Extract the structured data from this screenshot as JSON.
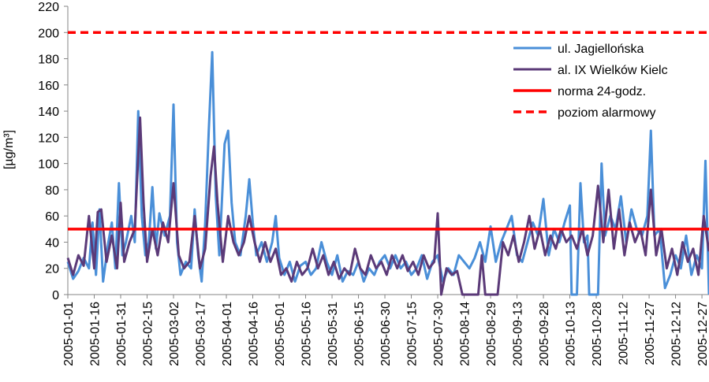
{
  "chart_data": {
    "type": "line",
    "title": "",
    "xlabel": "",
    "ylabel": "[µg/m³]",
    "ylim": [
      0,
      220
    ],
    "yticks": [
      0,
      20,
      40,
      60,
      80,
      100,
      120,
      140,
      160,
      180,
      200,
      220
    ],
    "x_start_date": "2005-01-01",
    "x_end_date": "2005-12-31",
    "xtick_labels": [
      "2005-01-01",
      "2005-01-16",
      "2005-01-31",
      "2005-02-15",
      "2005-03-02",
      "2005-03-17",
      "2005-04-01",
      "2005-04-16",
      "2005-05-01",
      "2005-05-16",
      "2005-05-31",
      "2005-06-15",
      "2005-06-30",
      "2005-07-15",
      "2005-07-30",
      "2005-08-14",
      "2005-08-29",
      "2005-09-13",
      "2005-09-28",
      "2005-10-13",
      "2005-10-28",
      "2005-11-12",
      "2005-11-27",
      "2005-12-12",
      "2005-12-27"
    ],
    "grid": false,
    "legend_position": "top-right",
    "series": [
      {
        "name": "ul. Jagiellońska",
        "color": "#4a8fd8",
        "style": "solid",
        "points": [
          [
            "2005-01-01",
            25
          ],
          [
            "2005-01-04",
            12
          ],
          [
            "2005-01-07",
            18
          ],
          [
            "2005-01-10",
            28
          ],
          [
            "2005-01-13",
            20
          ],
          [
            "2005-01-15",
            55
          ],
          [
            "2005-01-17",
            15
          ],
          [
            "2005-01-19",
            65
          ],
          [
            "2005-01-21",
            10
          ],
          [
            "2005-01-24",
            40
          ],
          [
            "2005-01-26",
            55
          ],
          [
            "2005-01-28",
            20
          ],
          [
            "2005-01-30",
            85
          ],
          [
            "2005-02-01",
            30
          ],
          [
            "2005-02-03",
            40
          ],
          [
            "2005-02-06",
            60
          ],
          [
            "2005-02-08",
            40
          ],
          [
            "2005-02-10",
            140
          ],
          [
            "2005-02-12",
            60
          ],
          [
            "2005-02-14",
            30
          ],
          [
            "2005-02-16",
            40
          ],
          [
            "2005-02-18",
            82
          ],
          [
            "2005-02-20",
            35
          ],
          [
            "2005-02-22",
            62
          ],
          [
            "2005-02-25",
            45
          ],
          [
            "2005-02-28",
            60
          ],
          [
            "2005-03-02",
            145
          ],
          [
            "2005-03-04",
            40
          ],
          [
            "2005-03-06",
            15
          ],
          [
            "2005-03-09",
            25
          ],
          [
            "2005-03-12",
            20
          ],
          [
            "2005-03-14",
            65
          ],
          [
            "2005-03-16",
            30
          ],
          [
            "2005-03-18",
            10
          ],
          [
            "2005-03-20",
            55
          ],
          [
            "2005-03-22",
            125
          ],
          [
            "2005-03-24",
            185
          ],
          [
            "2005-03-26",
            75
          ],
          [
            "2005-03-28",
            30
          ],
          [
            "2005-03-31",
            115
          ],
          [
            "2005-04-02",
            125
          ],
          [
            "2005-04-04",
            70
          ],
          [
            "2005-04-06",
            40
          ],
          [
            "2005-04-09",
            30
          ],
          [
            "2005-04-12",
            60
          ],
          [
            "2005-04-14",
            88
          ],
          [
            "2005-04-16",
            55
          ],
          [
            "2005-04-18",
            30
          ],
          [
            "2005-04-21",
            40
          ],
          [
            "2005-04-24",
            25
          ],
          [
            "2005-04-27",
            40
          ],
          [
            "2005-04-29",
            60
          ],
          [
            "2005-05-01",
            28
          ],
          [
            "2005-05-04",
            15
          ],
          [
            "2005-05-07",
            25
          ],
          [
            "2005-05-10",
            10
          ],
          [
            "2005-05-13",
            22
          ],
          [
            "2005-05-16",
            25
          ],
          [
            "2005-05-19",
            15
          ],
          [
            "2005-05-22",
            20
          ],
          [
            "2005-05-25",
            40
          ],
          [
            "2005-05-28",
            25
          ],
          [
            "2005-05-31",
            15
          ],
          [
            "2005-06-03",
            30
          ],
          [
            "2005-06-06",
            10
          ],
          [
            "2005-06-09",
            18
          ],
          [
            "2005-06-12",
            15
          ],
          [
            "2005-06-15",
            25
          ],
          [
            "2005-06-18",
            10
          ],
          [
            "2005-06-21",
            20
          ],
          [
            "2005-06-24",
            15
          ],
          [
            "2005-06-27",
            25
          ],
          [
            "2005-06-30",
            30
          ],
          [
            "2005-07-03",
            20
          ],
          [
            "2005-07-06",
            30
          ],
          [
            "2005-07-09",
            20
          ],
          [
            "2005-07-12",
            25
          ],
          [
            "2005-07-15",
            15
          ],
          [
            "2005-07-18",
            20
          ],
          [
            "2005-07-21",
            30
          ],
          [
            "2005-07-24",
            12
          ],
          [
            "2005-07-27",
            25
          ],
          [
            "2005-07-30",
            30
          ],
          [
            "2005-08-02",
            10
          ],
          [
            "2005-08-05",
            20
          ],
          [
            "2005-08-08",
            15
          ],
          [
            "2005-08-11",
            30
          ],
          [
            "2005-08-14",
            25
          ],
          [
            "2005-08-17",
            20
          ],
          [
            "2005-08-20",
            28
          ],
          [
            "2005-08-23",
            40
          ],
          [
            "2005-08-26",
            25
          ],
          [
            "2005-08-29",
            52
          ],
          [
            "2005-09-01",
            25
          ],
          [
            "2005-09-04",
            40
          ],
          [
            "2005-09-07",
            50
          ],
          [
            "2005-09-10",
            60
          ],
          [
            "2005-09-13",
            30
          ],
          [
            "2005-09-16",
            25
          ],
          [
            "2005-09-19",
            40
          ],
          [
            "2005-09-22",
            55
          ],
          [
            "2005-09-25",
            45
          ],
          [
            "2005-09-28",
            73
          ],
          [
            "2005-10-01",
            30
          ],
          [
            "2005-10-04",
            50
          ],
          [
            "2005-10-07",
            40
          ],
          [
            "2005-10-10",
            55
          ],
          [
            "2005-10-13",
            68
          ],
          [
            "2005-10-14",
            0
          ],
          [
            "2005-10-17",
            0
          ],
          [
            "2005-10-19",
            85
          ],
          [
            "2005-10-21",
            40
          ],
          [
            "2005-10-23",
            45
          ],
          [
            "2005-10-24",
            0
          ],
          [
            "2005-10-29",
            0
          ],
          [
            "2005-10-31",
            100
          ],
          [
            "2005-11-02",
            45
          ],
          [
            "2005-11-05",
            60
          ],
          [
            "2005-11-08",
            50
          ],
          [
            "2005-11-11",
            75
          ],
          [
            "2005-11-14",
            40
          ],
          [
            "2005-11-17",
            65
          ],
          [
            "2005-11-20",
            50
          ],
          [
            "2005-11-23",
            45
          ],
          [
            "2005-11-26",
            60
          ],
          [
            "2005-11-28",
            125
          ],
          [
            "2005-11-30",
            45
          ],
          [
            "2005-12-03",
            50
          ],
          [
            "2005-12-06",
            5
          ],
          [
            "2005-12-09",
            15
          ],
          [
            "2005-12-12",
            30
          ],
          [
            "2005-12-15",
            20
          ],
          [
            "2005-12-18",
            45
          ],
          [
            "2005-12-21",
            15
          ],
          [
            "2005-12-24",
            30
          ],
          [
            "2005-12-27",
            20
          ],
          [
            "2005-12-29",
            102
          ],
          [
            "2005-12-31",
            0
          ]
        ]
      },
      {
        "name": "al. IX Wielków Kielc",
        "color": "#5b3a78",
        "style": "solid",
        "points": [
          [
            "2005-01-01",
            28
          ],
          [
            "2005-01-04",
            15
          ],
          [
            "2005-01-07",
            30
          ],
          [
            "2005-01-10",
            22
          ],
          [
            "2005-01-13",
            60
          ],
          [
            "2005-01-16",
            20
          ],
          [
            "2005-01-18",
            63
          ],
          [
            "2005-01-20",
            65
          ],
          [
            "2005-01-23",
            25
          ],
          [
            "2005-01-26",
            45
          ],
          [
            "2005-01-29",
            20
          ],
          [
            "2005-01-31",
            70
          ],
          [
            "2005-02-02",
            25
          ],
          [
            "2005-02-05",
            40
          ],
          [
            "2005-02-08",
            50
          ],
          [
            "2005-02-11",
            135
          ],
          [
            "2005-02-13",
            70
          ],
          [
            "2005-02-15",
            25
          ],
          [
            "2005-02-18",
            50
          ],
          [
            "2005-02-21",
            30
          ],
          [
            "2005-02-24",
            55
          ],
          [
            "2005-02-27",
            40
          ],
          [
            "2005-03-02",
            85
          ],
          [
            "2005-03-05",
            30
          ],
          [
            "2005-03-08",
            20
          ],
          [
            "2005-03-11",
            25
          ],
          [
            "2005-03-14",
            60
          ],
          [
            "2005-03-17",
            20
          ],
          [
            "2005-03-20",
            35
          ],
          [
            "2005-03-23",
            90
          ],
          [
            "2005-03-25",
            113
          ],
          [
            "2005-03-27",
            70
          ],
          [
            "2005-03-30",
            25
          ],
          [
            "2005-04-02",
            60
          ],
          [
            "2005-04-05",
            40
          ],
          [
            "2005-04-08",
            30
          ],
          [
            "2005-04-11",
            40
          ],
          [
            "2005-04-14",
            60
          ],
          [
            "2005-04-17",
            40
          ],
          [
            "2005-04-20",
            25
          ],
          [
            "2005-04-23",
            40
          ],
          [
            "2005-04-26",
            25
          ],
          [
            "2005-04-29",
            35
          ],
          [
            "2005-05-02",
            15
          ],
          [
            "2005-05-05",
            20
          ],
          [
            "2005-05-08",
            10
          ],
          [
            "2005-05-11",
            25
          ],
          [
            "2005-05-14",
            15
          ],
          [
            "2005-05-17",
            20
          ],
          [
            "2005-05-20",
            35
          ],
          [
            "2005-05-23",
            20
          ],
          [
            "2005-05-26",
            30
          ],
          [
            "2005-05-29",
            15
          ],
          [
            "2005-06-01",
            25
          ],
          [
            "2005-06-04",
            12
          ],
          [
            "2005-06-07",
            20
          ],
          [
            "2005-06-10",
            15
          ],
          [
            "2005-06-13",
            35
          ],
          [
            "2005-06-16",
            20
          ],
          [
            "2005-06-19",
            15
          ],
          [
            "2005-06-22",
            30
          ],
          [
            "2005-06-25",
            20
          ],
          [
            "2005-06-28",
            25
          ],
          [
            "2005-07-01",
            15
          ],
          [
            "2005-07-04",
            30
          ],
          [
            "2005-07-07",
            20
          ],
          [
            "2005-07-10",
            30
          ],
          [
            "2005-07-13",
            18
          ],
          [
            "2005-07-16",
            25
          ],
          [
            "2005-07-19",
            15
          ],
          [
            "2005-07-22",
            30
          ],
          [
            "2005-07-25",
            20
          ],
          [
            "2005-07-28",
            25
          ],
          [
            "2005-07-30",
            62
          ],
          [
            "2005-08-01",
            0
          ],
          [
            "2005-08-04",
            20
          ],
          [
            "2005-08-07",
            15
          ],
          [
            "2005-08-10",
            18
          ],
          [
            "2005-08-13",
            0
          ],
          [
            "2005-08-22",
            0
          ],
          [
            "2005-08-24",
            30
          ],
          [
            "2005-08-26",
            0
          ],
          [
            "2005-09-02",
            0
          ],
          [
            "2005-09-05",
            40
          ],
          [
            "2005-09-08",
            30
          ],
          [
            "2005-09-11",
            45
          ],
          [
            "2005-09-14",
            25
          ],
          [
            "2005-09-17",
            40
          ],
          [
            "2005-09-20",
            60
          ],
          [
            "2005-09-23",
            35
          ],
          [
            "2005-09-26",
            50
          ],
          [
            "2005-09-29",
            30
          ],
          [
            "2005-10-02",
            45
          ],
          [
            "2005-10-05",
            35
          ],
          [
            "2005-10-08",
            50
          ],
          [
            "2005-10-11",
            40
          ],
          [
            "2005-10-14",
            45
          ],
          [
            "2005-10-17",
            35
          ],
          [
            "2005-10-20",
            50
          ],
          [
            "2005-10-23",
            30
          ],
          [
            "2005-10-26",
            45
          ],
          [
            "2005-10-29",
            83
          ],
          [
            "2005-11-01",
            40
          ],
          [
            "2005-11-04",
            80
          ],
          [
            "2005-11-07",
            35
          ],
          [
            "2005-11-10",
            65
          ],
          [
            "2005-11-13",
            30
          ],
          [
            "2005-11-16",
            55
          ],
          [
            "2005-11-19",
            40
          ],
          [
            "2005-11-22",
            50
          ],
          [
            "2005-11-25",
            30
          ],
          [
            "2005-11-28",
            80
          ],
          [
            "2005-12-01",
            30
          ],
          [
            "2005-12-04",
            50
          ],
          [
            "2005-12-07",
            20
          ],
          [
            "2005-12-10",
            35
          ],
          [
            "2005-12-13",
            15
          ],
          [
            "2005-12-16",
            40
          ],
          [
            "2005-12-19",
            25
          ],
          [
            "2005-12-22",
            35
          ],
          [
            "2005-12-25",
            15
          ],
          [
            "2005-12-28",
            60
          ],
          [
            "2005-12-31",
            33
          ]
        ]
      },
      {
        "name": "norma 24-godz.",
        "color": "#ff0000",
        "style": "solid",
        "constant": 50
      },
      {
        "name": "poziom alarmowy",
        "color": "#ff0000",
        "style": "dashed",
        "constant": 200
      }
    ]
  }
}
